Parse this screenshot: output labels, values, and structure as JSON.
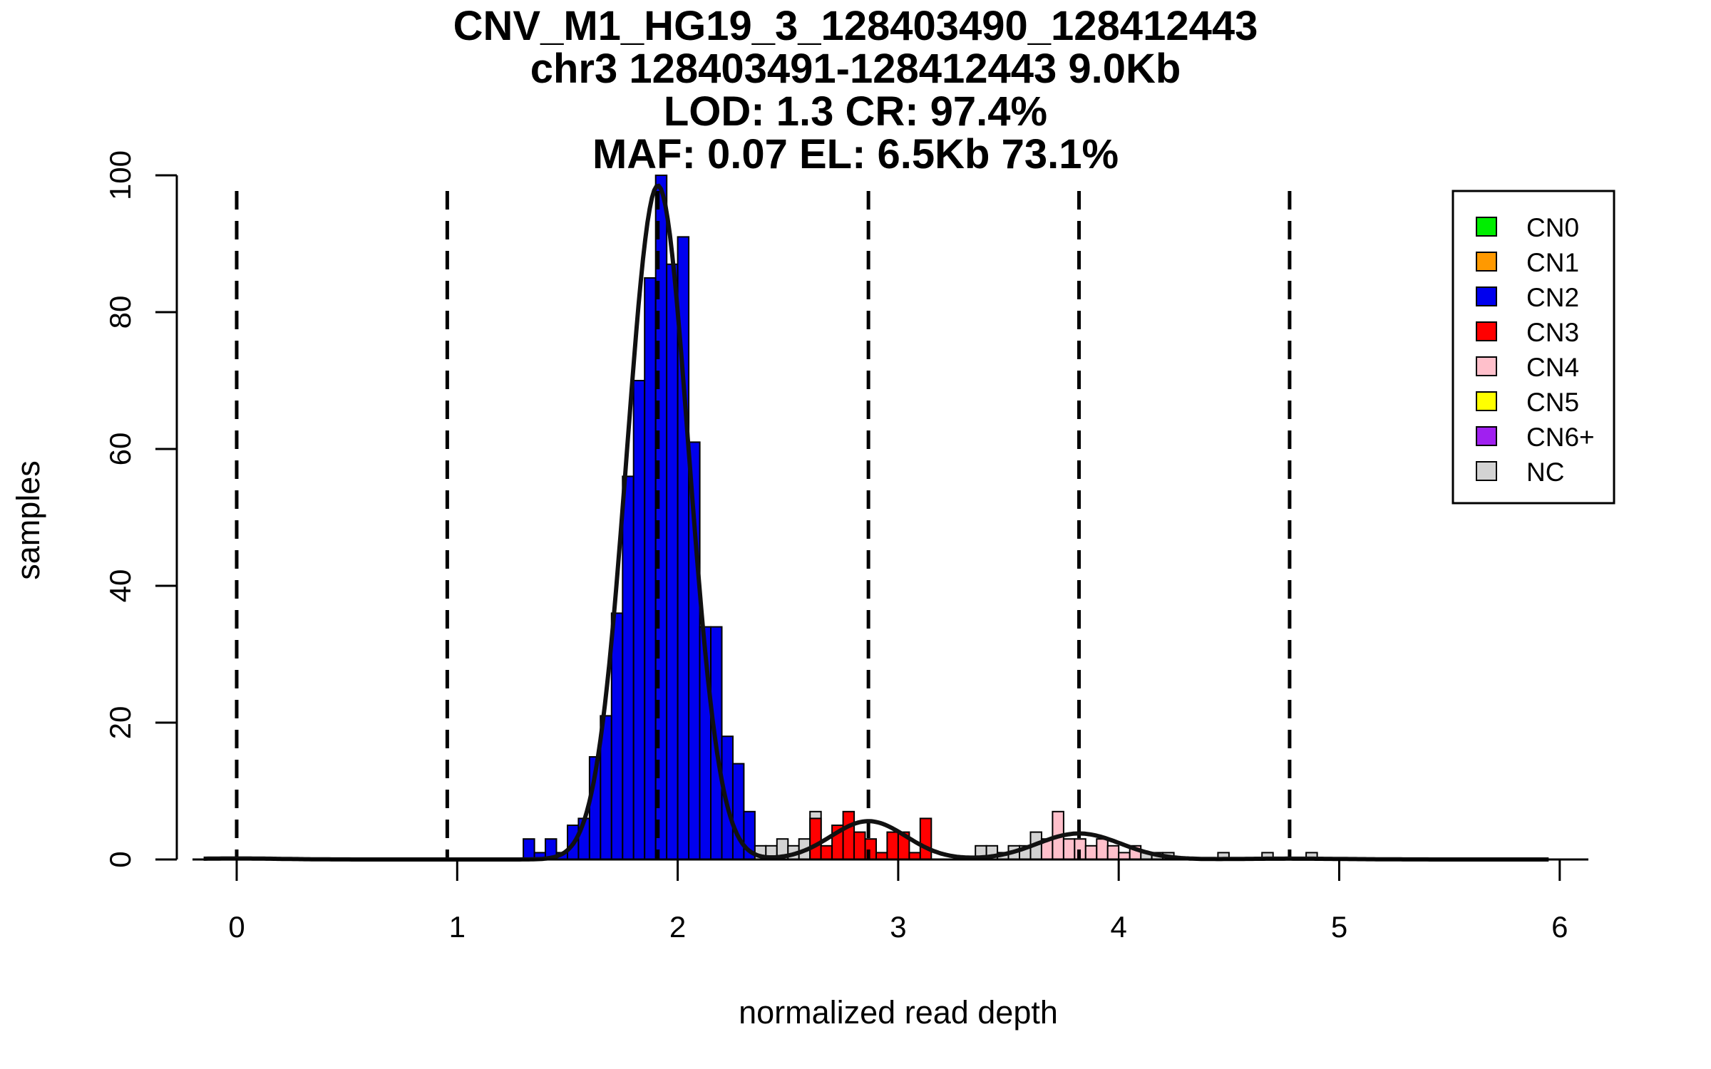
{
  "chart_data": {
    "type": "bar",
    "title": [
      "CNV_M1_HG19_3_128403490_128412443",
      "chr3 128403491-128412443 9.0Kb",
      "LOD: 1.3 CR: 97.4%",
      "MAF: 0.07 EL: 6.5Kb 73.1%"
    ],
    "xlabel": "normalized read depth",
    "ylabel": "samples",
    "xlim": [
      -0.2,
      6.12
    ],
    "ylim": [
      0,
      100
    ],
    "x_ticks": [
      0,
      1,
      2,
      3,
      4,
      5,
      6
    ],
    "y_ticks": [
      0,
      20,
      40,
      60,
      80,
      100
    ],
    "bin_width": 0.05,
    "cutoff_lines": [
      0,
      0.955,
      1.91,
      2.865,
      3.82,
      4.775
    ],
    "legend": {
      "placement": "top-right",
      "entries": [
        {
          "label": "CN0",
          "color": "#00ee00"
        },
        {
          "label": "CN1",
          "color": "#ff9900"
        },
        {
          "label": "CN2",
          "color": "#0000ee"
        },
        {
          "label": "CN3",
          "color": "#ff0000"
        },
        {
          "label": "CN4",
          "color": "#ffc0cb"
        },
        {
          "label": "CN5",
          "color": "#ffff00"
        },
        {
          "label": "CN6+",
          "color": "#a020f0"
        },
        {
          "label": "NC",
          "color": "#d3d3d3"
        }
      ]
    },
    "series": [
      {
        "class": "CN2",
        "color": "#0000ee",
        "bins": [
          [
            1.3,
            3
          ],
          [
            1.35,
            1
          ],
          [
            1.4,
            3
          ],
          [
            1.45,
            1
          ],
          [
            1.5,
            5
          ],
          [
            1.55,
            6
          ],
          [
            1.6,
            15
          ],
          [
            1.65,
            21
          ],
          [
            1.7,
            36
          ],
          [
            1.75,
            56
          ],
          [
            1.8,
            70
          ],
          [
            1.85,
            85
          ],
          [
            1.9,
            100
          ],
          [
            1.95,
            87
          ],
          [
            2.0,
            91
          ],
          [
            2.05,
            61
          ],
          [
            2.1,
            34
          ],
          [
            2.15,
            34
          ],
          [
            2.2,
            18
          ],
          [
            2.25,
            14
          ],
          [
            2.3,
            7
          ]
        ]
      },
      {
        "class": "NC",
        "color": "#d3d3d3",
        "bins": [
          [
            2.35,
            2
          ],
          [
            2.4,
            2
          ],
          [
            2.45,
            3
          ],
          [
            2.5,
            2
          ],
          [
            2.55,
            3
          ],
          [
            2.6,
            7
          ],
          [
            3.35,
            2
          ],
          [
            3.4,
            2
          ],
          [
            3.45,
            1
          ],
          [
            3.5,
            2
          ],
          [
            3.55,
            2
          ],
          [
            3.6,
            4
          ],
          [
            4.1,
            1
          ],
          [
            4.15,
            1
          ],
          [
            4.2,
            1
          ],
          [
            4.45,
            1
          ],
          [
            4.65,
            1
          ],
          [
            4.85,
            1
          ]
        ]
      },
      {
        "class": "CN3",
        "color": "#ff0000",
        "bins": [
          [
            2.6,
            6
          ],
          [
            2.65,
            2
          ],
          [
            2.7,
            5
          ],
          [
            2.75,
            7
          ],
          [
            2.8,
            4
          ],
          [
            2.85,
            3
          ],
          [
            2.9,
            1
          ],
          [
            2.95,
            4
          ],
          [
            3.0,
            4
          ],
          [
            3.05,
            1
          ],
          [
            3.1,
            6
          ]
        ]
      },
      {
        "class": "CN4",
        "color": "#ffc0cb",
        "bins": [
          [
            3.65,
            3
          ],
          [
            3.7,
            7
          ],
          [
            3.75,
            3
          ],
          [
            3.8,
            3
          ],
          [
            3.85,
            2
          ],
          [
            3.9,
            3
          ],
          [
            3.95,
            2
          ],
          [
            4.0,
            1
          ],
          [
            4.05,
            2
          ]
        ]
      }
    ],
    "fit_components": [
      {
        "mean": 1.91,
        "sd": 0.14,
        "peak": 98.5
      },
      {
        "mean": 2.865,
        "sd": 0.17,
        "peak": 5.6
      },
      {
        "mean": 3.82,
        "sd": 0.19,
        "peak": 3.8
      },
      {
        "mean": 0.0,
        "sd": 0.2,
        "peak": 0.15
      },
      {
        "mean": 4.775,
        "sd": 0.25,
        "peak": 0.12
      }
    ]
  }
}
